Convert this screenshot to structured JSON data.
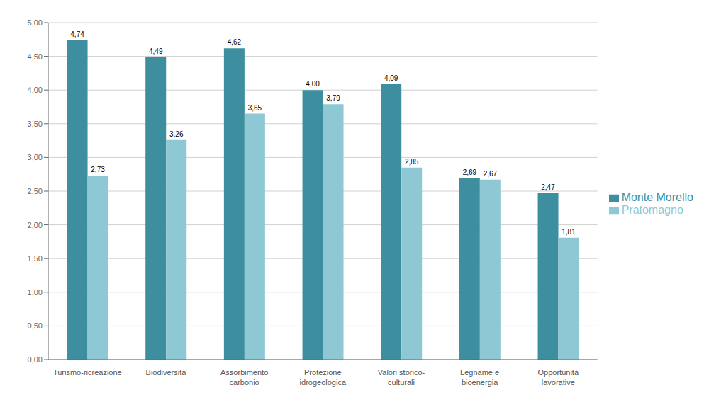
{
  "chart_data": {
    "type": "bar",
    "categories": [
      "Turismo-ricreazione",
      "Biodiversità",
      "Assorbimento\ncarbonio",
      "Protezione\nidrogeologica",
      "Valori storico-\nculturali",
      "Legname e\nbioenergia",
      "Opportunità\nlavorative"
    ],
    "series": [
      {
        "name": "Monte Morello",
        "color": "#3d8fa0",
        "values": [
          4.74,
          4.49,
          4.62,
          4.0,
          4.09,
          2.69,
          2.47
        ],
        "value_labels": [
          "4,74",
          "4,49",
          "4,62",
          "4,00",
          "4,09",
          "2,69",
          "2,47"
        ]
      },
      {
        "name": "Pratomagno",
        "color": "#8ec8d4",
        "values": [
          2.73,
          3.26,
          3.65,
          3.79,
          2.85,
          2.67,
          1.81
        ],
        "value_labels": [
          "2,73",
          "3,26",
          "3,65",
          "3,79",
          "2,85",
          "2,67",
          "1,81"
        ]
      }
    ],
    "ylim": [
      0,
      5.0
    ],
    "yticks": [
      {
        "value": 0.0,
        "label": "0,00"
      },
      {
        "value": 0.5,
        "label": "0,50"
      },
      {
        "value": 1.0,
        "label": "1,00"
      },
      {
        "value": 1.5,
        "label": "1,50"
      },
      {
        "value": 2.0,
        "label": "2,00"
      },
      {
        "value": 2.5,
        "label": "2,50"
      },
      {
        "value": 3.0,
        "label": "3,00"
      },
      {
        "value": 3.5,
        "label": "3,50"
      },
      {
        "value": 4.0,
        "label": "4,00"
      },
      {
        "value": 4.5,
        "label": "4,50"
      },
      {
        "value": 5.0,
        "label": "5,00"
      }
    ],
    "grid": true,
    "legend": "right",
    "data_labels": true
  }
}
